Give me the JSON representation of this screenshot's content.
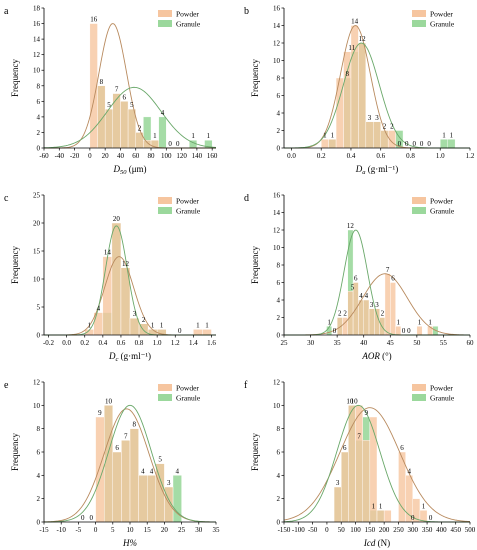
{
  "colors": {
    "powder": "#f6c59f",
    "granule": "#9bd89c",
    "powder_curve": "#b88a5e",
    "granule_curve": "#6aa86a",
    "axis": "#000000"
  },
  "chart_data": [
    {
      "panel": "a",
      "type": "bar",
      "xlabel": "D50 (μm)",
      "xlabel_main": "D",
      "xlabel_sub": "50",
      "xlabel_tail": " (μm)",
      "ylabel": "Frequency",
      "xlim": [
        -60,
        165
      ],
      "ylim": [
        0,
        18
      ],
      "xticks": [
        -60,
        -40,
        -20,
        0,
        20,
        40,
        60,
        80,
        100,
        120,
        140,
        160
      ],
      "yticks": [
        0,
        2,
        4,
        6,
        8,
        10,
        12,
        14,
        16,
        18
      ],
      "bin_width": 10,
      "legend": [
        "Powder",
        "Granule"
      ],
      "legend_position": "top-right",
      "series": [
        {
          "name": "Powder",
          "x": [
            5,
            15,
            25,
            35,
            45,
            55,
            65,
            75,
            85,
            95,
            105,
            115,
            125,
            135,
            145,
            155
          ],
          "values": [
            16,
            8,
            5,
            7,
            6,
            5,
            2,
            1,
            1,
            0,
            0,
            0,
            0,
            0,
            0,
            0
          ]
        },
        {
          "name": "Granule",
          "x": [
            5,
            15,
            25,
            35,
            45,
            55,
            65,
            75,
            85,
            95,
            105,
            115,
            125,
            135,
            145,
            155
          ],
          "values": [
            0,
            8,
            5,
            7,
            6,
            5,
            2,
            4,
            1,
            4,
            0,
            0,
            0,
            1,
            0,
            1
          ]
        }
      ],
      "bar_labels": [
        {
          "x": 5,
          "value": 16
        },
        {
          "x": 15,
          "value": 8
        },
        {
          "x": 25,
          "value": 5
        },
        {
          "x": 35,
          "value": 7
        },
        {
          "x": 45,
          "value": 6
        },
        {
          "x": 55,
          "value": 5
        },
        {
          "x": 65,
          "value": 2
        },
        {
          "x": 85,
          "value": 1
        },
        {
          "x": 95,
          "value": 4
        },
        {
          "x": 105,
          "value": 0
        },
        {
          "x": 115,
          "value": 0
        },
        {
          "x": 135,
          "value": 1
        },
        {
          "x": 155,
          "value": 1
        }
      ],
      "curves": [
        {
          "name": "Powder",
          "mean": 30,
          "sd": 18,
          "peak": 16
        },
        {
          "name": "Granule",
          "mean": 58,
          "sd": 35,
          "peak": 7.8
        }
      ]
    },
    {
      "panel": "b",
      "type": "bar",
      "xlabel": "Da (g·ml-1)",
      "xlabel_main": "D",
      "xlabel_sub": "a",
      "xlabel_tail": " (g·ml⁻¹)",
      "ylabel": "Frequency",
      "xlim": [
        -0.05,
        1.2
      ],
      "ylim": [
        0,
        16
      ],
      "xticks": [
        0.0,
        0.2,
        0.4,
        0.6,
        0.8,
        1.0,
        1.2
      ],
      "xtick_labels": [
        "0.0",
        "0.2",
        "0.4",
        "0.6",
        "0.8",
        "1.0",
        "1.2"
      ],
      "yticks": [
        0,
        2,
        4,
        6,
        8,
        10,
        12,
        14,
        16
      ],
      "bin_width": 0.05,
      "legend": [
        "Powder",
        "Granule"
      ],
      "legend_position": "top-right",
      "series": [
        {
          "name": "Powder",
          "x": [
            0.225,
            0.275,
            0.325,
            0.375,
            0.425,
            0.475,
            0.525,
            0.575,
            0.625,
            0.675,
            0.725,
            0.775,
            0.825,
            0.875,
            0.925,
            0.975,
            1.025,
            1.075
          ],
          "values": [
            1,
            1,
            8,
            11,
            14,
            12,
            3,
            3,
            2,
            2,
            0,
            0,
            0,
            0,
            0,
            0,
            0,
            0
          ]
        },
        {
          "name": "Granule",
          "x": [
            0.225,
            0.275,
            0.325,
            0.375,
            0.425,
            0.475,
            0.525,
            0.575,
            0.625,
            0.675,
            0.725,
            0.775,
            0.825,
            0.875,
            0.925,
            0.975,
            1.025,
            1.075
          ],
          "values": [
            0,
            1,
            0,
            8,
            11,
            12,
            3,
            3,
            2,
            0,
            2,
            0,
            0,
            0,
            0,
            0,
            1,
            1
          ]
        }
      ],
      "bar_labels": [
        {
          "x": 0.225,
          "value": 1
        },
        {
          "x": 0.275,
          "value": 1
        },
        {
          "x": 0.375,
          "value": 8
        },
        {
          "x": 0.405,
          "value": 11
        },
        {
          "x": 0.425,
          "value": 14
        },
        {
          "x": 0.475,
          "value": 12
        },
        {
          "x": 0.525,
          "value": 3
        },
        {
          "x": 0.575,
          "value": 3
        },
        {
          "x": 0.625,
          "value": 2
        },
        {
          "x": 0.675,
          "value": 2
        },
        {
          "x": 0.725,
          "value": 0
        },
        {
          "x": 0.775,
          "value": 0
        },
        {
          "x": 0.825,
          "value": 0
        },
        {
          "x": 0.875,
          "value": 0
        },
        {
          "x": 0.925,
          "value": 0
        },
        {
          "x": 1.025,
          "value": 1
        },
        {
          "x": 1.075,
          "value": 1
        }
      ],
      "curves": [
        {
          "name": "Powder",
          "mean": 0.43,
          "sd": 0.1,
          "peak": 14
        },
        {
          "name": "Granule",
          "mean": 0.47,
          "sd": 0.12,
          "peak": 12
        }
      ]
    },
    {
      "panel": "c",
      "type": "bar",
      "xlabel": "Dc (g·ml-1)",
      "xlabel_main": "D",
      "xlabel_sub": "c",
      "xlabel_tail": " (g·ml⁻¹)",
      "ylabel": "Frequency",
      "xlim": [
        -0.25,
        1.65
      ],
      "ylim": [
        0,
        25
      ],
      "xticks": [
        -0.2,
        0.0,
        0.2,
        0.4,
        0.6,
        0.8,
        1.0,
        1.2,
        1.4,
        1.6
      ],
      "xtick_labels": [
        "-0.2",
        "0.0",
        "0.2",
        "0.4",
        "0.6",
        "0.8",
        "1.0",
        "1.2",
        "1.4",
        "1.6"
      ],
      "yticks": [
        0,
        5,
        10,
        15,
        20,
        25
      ],
      "bin_width": 0.1,
      "legend": [
        "Powder",
        "Granule"
      ],
      "legend_position": "top-right",
      "series": [
        {
          "name": "Powder",
          "x": [
            0.25,
            0.35,
            0.45,
            0.55,
            0.65,
            0.75,
            0.85,
            0.95,
            1.05,
            1.15,
            1.25,
            1.35,
            1.45,
            1.55
          ],
          "values": [
            1,
            4,
            14,
            20,
            12,
            3,
            2,
            1,
            1,
            0,
            0,
            0,
            1,
            1
          ]
        },
        {
          "name": "Granule",
          "x": [
            0.25,
            0.35,
            0.45,
            0.55,
            0.65,
            0.75,
            0.85,
            0.95,
            1.05,
            1.15,
            1.25,
            1.35,
            1.45,
            1.55
          ],
          "values": [
            0,
            0,
            4,
            20,
            12,
            3,
            2,
            1,
            1,
            0,
            0,
            0,
            0,
            0
          ]
        }
      ],
      "bar_labels": [
        {
          "x": 0.25,
          "value": 1
        },
        {
          "x": 0.35,
          "value": 4
        },
        {
          "x": 0.45,
          "value": 14
        },
        {
          "x": 0.55,
          "value": 20
        },
        {
          "x": 0.65,
          "value": 12
        },
        {
          "x": 0.75,
          "value": 3
        },
        {
          "x": 0.85,
          "value": 2
        },
        {
          "x": 0.95,
          "value": 1
        },
        {
          "x": 1.05,
          "value": 1
        },
        {
          "x": 1.25,
          "value": 0
        },
        {
          "x": 1.45,
          "value": 1
        },
        {
          "x": 1.55,
          "value": 1
        }
      ],
      "curves": [
        {
          "name": "Powder",
          "mean": 0.58,
          "sd": 0.16,
          "peak": 14
        },
        {
          "name": "Granule",
          "mean": 0.55,
          "sd": 0.12,
          "peak": 19.5
        }
      ]
    },
    {
      "panel": "d",
      "type": "bar",
      "xlabel": "AOR (°)",
      "xlabel_main": "AOR",
      "xlabel_sub": "",
      "xlabel_tail": " (°)",
      "ylabel": "Frequency",
      "xlim": [
        25,
        60
      ],
      "ylim": [
        0,
        16
      ],
      "xticks": [
        25,
        30,
        35,
        40,
        45,
        50,
        55,
        60
      ],
      "yticks": [
        0,
        2,
        4,
        6,
        8,
        10,
        12,
        14,
        16
      ],
      "bin_width": 1,
      "legend": [
        "Powder",
        "Granule"
      ],
      "legend_position": "top-right",
      "series": [
        {
          "name": "Powder",
          "x": [
            33.5,
            34.5,
            35.5,
            36.5,
            37.5,
            38.5,
            39.5,
            40.5,
            41.5,
            42.5,
            43.5,
            44.5,
            45.5,
            46.5,
            47.5,
            48.5,
            49.5,
            50.5,
            51.5,
            52.5,
            53.5
          ],
          "values": [
            0,
            0,
            2,
            2,
            5,
            6,
            4,
            4,
            3,
            3,
            2,
            7,
            6,
            1,
            0,
            0,
            0,
            1,
            0,
            1,
            0
          ]
        },
        {
          "name": "Granule",
          "x": [
            33.5,
            34.5,
            35.5,
            36.5,
            37.5,
            38.5,
            39.5,
            40.5,
            41.5,
            42.5,
            43.5,
            44.5,
            45.5,
            46.5,
            47.5,
            48.5,
            49.5,
            50.5,
            51.5,
            52.5,
            53.5
          ],
          "values": [
            1,
            0,
            2,
            0,
            12,
            6,
            4,
            4,
            3,
            3,
            2,
            0,
            0,
            0,
            0,
            0,
            0,
            0,
            0,
            0,
            1
          ]
        }
      ],
      "bar_labels": [
        {
          "x": 33.5,
          "value": 1
        },
        {
          "x": 34.5,
          "value": 0
        },
        {
          "x": 35.5,
          "value": 2
        },
        {
          "x": 36.5,
          "value": 2
        },
        {
          "x": 37.5,
          "value": 12
        },
        {
          "x": 37.9,
          "value": 5
        },
        {
          "x": 38.5,
          "value": 6
        },
        {
          "x": 39.5,
          "value": 4
        },
        {
          "x": 40.5,
          "value": 4
        },
        {
          "x": 41.5,
          "value": 3
        },
        {
          "x": 42.5,
          "value": 3
        },
        {
          "x": 43.5,
          "value": 2
        },
        {
          "x": 44.5,
          "value": 7
        },
        {
          "x": 45.5,
          "value": 6
        },
        {
          "x": 46.5,
          "value": 1
        },
        {
          "x": 47.5,
          "value": 0
        },
        {
          "x": 48.5,
          "value": 0
        },
        {
          "x": 50.5,
          "value": 1
        },
        {
          "x": 52.5,
          "value": 1
        }
      ],
      "curves": [
        {
          "name": "Powder",
          "mean": 44,
          "sd": 4.2,
          "peak": 7
        },
        {
          "name": "Granule",
          "mean": 38.5,
          "sd": 2.2,
          "peak": 12
        }
      ]
    },
    {
      "panel": "e",
      "type": "bar",
      "xlabel": "H%",
      "xlabel_main": "H%",
      "xlabel_sub": "",
      "xlabel_tail": "",
      "ylabel": "Frequency",
      "xlim": [
        -15,
        35
      ],
      "ylim": [
        0,
        12
      ],
      "xticks": [
        -15,
        -10,
        -5,
        0,
        5,
        10,
        15,
        20,
        25,
        30,
        35
      ],
      "yticks": [
        0,
        2,
        4,
        6,
        8,
        10,
        12
      ],
      "bin_width": 2.5,
      "legend": [
        "Powder",
        "Granule"
      ],
      "legend_position": "top-right",
      "series": [
        {
          "name": "Powder",
          "x": [
            -3.75,
            -1.25,
            1.25,
            3.75,
            6.25,
            8.75,
            11.25,
            13.75,
            16.25,
            18.75,
            21.25,
            23.75
          ],
          "values": [
            0,
            0,
            9,
            10,
            6,
            7,
            8,
            4,
            4,
            5,
            3,
            0
          ]
        },
        {
          "name": "Granule",
          "x": [
            -3.75,
            -1.25,
            1.25,
            3.75,
            6.25,
            8.75,
            11.25,
            13.75,
            16.25,
            18.75,
            21.25,
            23.75
          ],
          "values": [
            0,
            0,
            0,
            10,
            6,
            7,
            8,
            4,
            4,
            5,
            3,
            4
          ]
        }
      ],
      "bar_labels": [
        {
          "x": -3.75,
          "value": 0
        },
        {
          "x": -1.25,
          "value": 0
        },
        {
          "x": 1.25,
          "value": 9
        },
        {
          "x": 3.75,
          "value": 10
        },
        {
          "x": 6.25,
          "value": 6
        },
        {
          "x": 8.75,
          "value": 7
        },
        {
          "x": 11.25,
          "value": 8
        },
        {
          "x": 13.75,
          "value": 4
        },
        {
          "x": 16.25,
          "value": 4
        },
        {
          "x": 18.75,
          "value": 5
        },
        {
          "x": 21.25,
          "value": 3
        },
        {
          "x": 23.75,
          "value": 4
        }
      ],
      "curves": [
        {
          "name": "Powder",
          "mean": 9,
          "sd": 6.5,
          "peak": 9.7
        },
        {
          "name": "Granule",
          "mean": 10,
          "sd": 6.2,
          "peak": 10
        }
      ]
    },
    {
      "panel": "f",
      "type": "bar",
      "xlabel": "Icd (N)",
      "xlabel_main": "Icd",
      "xlabel_sub": "",
      "xlabel_tail": " (N)",
      "ylabel": "Frequency",
      "xlim": [
        -150,
        500
      ],
      "ylim": [
        0,
        12
      ],
      "xticks": [
        -150,
        -100,
        -50,
        0,
        50,
        100,
        150,
        200,
        250,
        300,
        350,
        400,
        450,
        500
      ],
      "yticks": [
        0,
        2,
        4,
        6,
        8,
        10,
        12
      ],
      "bin_width": 25,
      "legend": [
        "Powder",
        "Granule"
      ],
      "legend_position": "top-right",
      "series": [
        {
          "name": "Powder",
          "x": [
            37.5,
            62.5,
            87.5,
            112.5,
            137.5,
            162.5,
            187.5,
            212.5,
            237.5,
            262.5,
            287.5,
            312.5,
            337.5,
            362.5
          ],
          "values": [
            3,
            6,
            10,
            10,
            7,
            9,
            1,
            1,
            0,
            6,
            4,
            2,
            1,
            0
          ]
        },
        {
          "name": "Granule",
          "x": [
            37.5,
            62.5,
            87.5,
            112.5,
            137.5,
            162.5,
            187.5,
            212.5,
            237.5,
            262.5,
            287.5,
            312.5,
            337.5,
            362.5
          ],
          "values": [
            3,
            6,
            10,
            7,
            9,
            1,
            1,
            0,
            0,
            0,
            0,
            0,
            0,
            0
          ]
        }
      ],
      "bar_labels": [
        {
          "x": 37.5,
          "value": 3
        },
        {
          "x": 62.5,
          "value": 6
        },
        {
          "x": 80,
          "value": 10
        },
        {
          "x": 95,
          "value": 10
        },
        {
          "x": 112.5,
          "value": 7
        },
        {
          "x": 137.5,
          "value": 9
        },
        {
          "x": 162.5,
          "value": 1
        },
        {
          "x": 187.5,
          "value": 1
        },
        {
          "x": 262.5,
          "value": 6
        },
        {
          "x": 287.5,
          "value": 4
        },
        {
          "x": 300,
          "value": 0
        },
        {
          "x": 337.5,
          "value": 1
        },
        {
          "x": 362.5,
          "value": 0
        }
      ],
      "curves": [
        {
          "name": "Powder",
          "mean": 150,
          "sd": 105,
          "peak": 9.8
        },
        {
          "name": "Granule",
          "mean": 110,
          "sd": 75,
          "peak": 10
        }
      ]
    }
  ]
}
